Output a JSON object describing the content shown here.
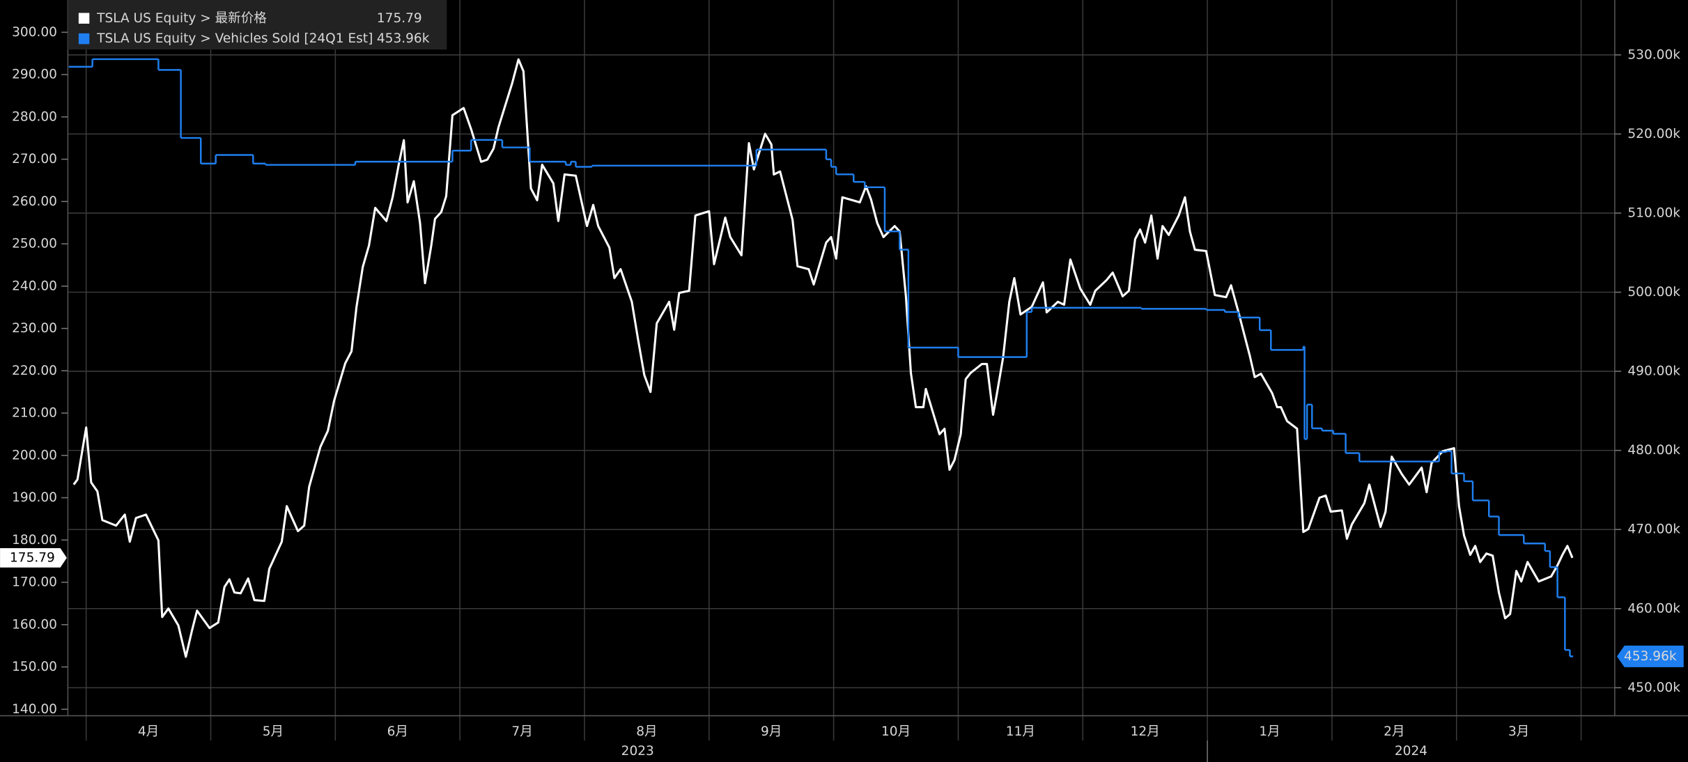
{
  "chart_data": {
    "type": "line",
    "xlim": [
      3.853,
      16.27
    ],
    "xticks": [
      {
        "value": 4,
        "label": "4月"
      },
      {
        "value": 5,
        "label": "5月"
      },
      {
        "value": 6,
        "label": "6月"
      },
      {
        "value": 7,
        "label": "7月"
      },
      {
        "value": 8,
        "label": "8月"
      },
      {
        "value": 9,
        "label": "9月"
      },
      {
        "value": 10,
        "label": "10月"
      },
      {
        "value": 11,
        "label": "11月"
      },
      {
        "value": 12,
        "label": "12月"
      },
      {
        "value": 13,
        "label": "1月"
      },
      {
        "value": 14,
        "label": "2月"
      },
      {
        "value": 15,
        "label": "3月"
      },
      16
    ],
    "year_labels": [
      "2023",
      "2024"
    ],
    "year_break": 13,
    "ylim": [
      138.47,
      307.63
    ],
    "yticks": [
      {
        "value": 140,
        "label": "140.00"
      },
      {
        "value": 150,
        "label": "150.00"
      },
      {
        "value": 160,
        "label": "160.00"
      },
      {
        "value": 170,
        "label": "170.00"
      },
      {
        "value": 180,
        "label": "180.00"
      },
      {
        "value": 190,
        "label": "190.00"
      },
      {
        "value": 200,
        "label": "200.00"
      },
      {
        "value": 210,
        "label": "210.00"
      },
      {
        "value": 220,
        "label": "220.00"
      },
      {
        "value": 230,
        "label": "230.00"
      },
      {
        "value": 240,
        "label": "240.00"
      },
      {
        "value": 250,
        "label": "250.00"
      },
      {
        "value": 260,
        "label": "260.00"
      },
      {
        "value": 270,
        "label": "270.00"
      },
      {
        "value": 280,
        "label": "280.00"
      },
      {
        "value": 290,
        "label": "290.00"
      },
      {
        "value": 300,
        "label": "300.00"
      }
    ],
    "y2lim": [
      446460,
      536940
    ],
    "y2ticks": [
      {
        "value": 450000,
        "label": "450.00k"
      },
      {
        "value": 460000,
        "label": "460.00k"
      },
      {
        "value": 470000,
        "label": "470.00k"
      },
      {
        "value": 480000,
        "label": "480.00k"
      },
      {
        "value": 490000,
        "label": "490.00k"
      },
      {
        "value": 500000,
        "label": "500.00k"
      },
      {
        "value": 510000,
        "label": "510.00k"
      },
      {
        "value": 520000,
        "label": "520.00k"
      },
      {
        "value": 530000,
        "label": "530.00k"
      }
    ],
    "grid": true,
    "legend": "top-left",
    "series": [
      {
        "name": "TSLA US Equity > 最新价格",
        "color": "#ffffff",
        "axis": "y",
        "x": [
          3.9,
          3.93,
          4.0,
          4.04,
          4.09,
          4.13,
          4.24,
          4.31,
          4.35,
          4.4,
          4.48,
          4.58,
          4.61,
          4.66,
          4.74,
          4.8,
          4.85,
          4.89,
          4.99,
          5.06,
          5.11,
          5.15,
          5.19,
          5.24,
          5.3,
          5.35,
          5.43,
          5.47,
          5.57,
          5.61,
          5.7,
          5.75,
          5.79,
          5.88,
          5.94,
          5.99,
          6.08,
          6.13,
          6.17,
          6.22,
          6.27,
          6.32,
          6.41,
          6.46,
          6.51,
          6.55,
          6.58,
          6.63,
          6.68,
          6.72,
          6.77,
          6.8,
          6.85,
          6.89,
          6.94,
          7.03,
          7.09,
          7.17,
          7.22,
          7.27,
          7.31,
          7.42,
          7.47,
          7.51,
          7.57,
          7.62,
          7.66,
          7.75,
          7.79,
          7.84,
          7.93,
          8.02,
          8.07,
          8.11,
          8.2,
          8.24,
          8.29,
          8.38,
          8.43,
          8.48,
          8.53,
          8.58,
          8.68,
          8.72,
          8.76,
          8.84,
          8.89,
          9.0,
          9.04,
          9.13,
          9.17,
          9.26,
          9.32,
          9.36,
          9.45,
          9.5,
          9.52,
          9.57,
          9.67,
          9.71,
          9.8,
          9.84,
          9.94,
          9.98,
          10.02,
          10.07,
          10.21,
          10.26,
          10.3,
          10.35,
          10.4,
          10.49,
          10.53,
          10.58,
          10.62,
          10.66,
          10.72,
          10.74,
          10.85,
          10.89,
          10.93,
          10.97,
          11.02,
          11.06,
          11.1,
          11.19,
          11.23,
          11.28,
          11.31,
          11.36,
          11.41,
          11.45,
          11.5,
          11.59,
          11.68,
          11.71,
          11.8,
          11.85,
          11.9,
          11.98,
          12.06,
          12.1,
          12.19,
          12.24,
          12.32,
          12.37,
          12.42,
          12.46,
          12.5,
          12.55,
          12.6,
          12.64,
          12.69,
          12.77,
          12.82,
          12.86,
          12.9,
          12.99,
          13.06,
          13.15,
          13.19,
          13.25,
          13.34,
          13.38,
          13.43,
          13.52,
          13.56,
          13.59,
          13.64,
          13.72,
          13.77,
          13.81,
          13.9,
          13.95,
          13.99,
          14.08,
          14.12,
          14.16,
          14.26,
          14.3,
          14.39,
          14.43,
          14.48,
          14.56,
          14.62,
          14.72,
          14.76,
          14.8,
          14.89,
          14.98,
          15.02,
          15.06,
          15.11,
          15.15,
          15.19,
          15.24,
          15.29,
          15.34,
          15.39,
          15.43,
          15.48,
          15.52,
          15.57,
          15.66,
          15.76,
          15.81,
          15.85,
          15.89,
          15.93
        ],
        "values": [
          193.1,
          194.3,
          206.6,
          193.6,
          191.5,
          184.7,
          183.4,
          186.0,
          179.6,
          185.2,
          186.0,
          179.9,
          161.8,
          163.8,
          159.8,
          152.4,
          158.7,
          163.3,
          159.2,
          160.5,
          168.9,
          170.7,
          167.6,
          167.4,
          170.9,
          165.8,
          165.6,
          173.2,
          179.6,
          188.0,
          182.1,
          183.4,
          192.6,
          202.0,
          205.8,
          212.9,
          221.8,
          224.6,
          235.1,
          244.5,
          249.6,
          258.5,
          255.4,
          261.0,
          268.9,
          274.5,
          259.8,
          264.8,
          254.9,
          240.7,
          249.6,
          255.9,
          257.5,
          261.3,
          280.4,
          282.1,
          277.1,
          269.4,
          269.9,
          272.5,
          277.6,
          288.0,
          293.6,
          290.8,
          263.1,
          260.3,
          268.7,
          264.3,
          255.4,
          266.4,
          266.1,
          254.2,
          259.2,
          254.2,
          249.1,
          241.9,
          244.0,
          236.3,
          227.4,
          219.0,
          215.0,
          231.2,
          236.3,
          229.7,
          238.4,
          238.9,
          256.7,
          257.7,
          245.2,
          256.2,
          251.6,
          247.3,
          273.8,
          267.6,
          276.0,
          273.5,
          266.4,
          267.1,
          255.7,
          244.7,
          244.0,
          240.4,
          250.3,
          251.6,
          246.5,
          261.0,
          259.8,
          263.6,
          260.5,
          254.9,
          251.6,
          254.2,
          252.9,
          237.6,
          219.5,
          211.4,
          211.4,
          215.7,
          205.0,
          206.3,
          196.6,
          198.9,
          205.0,
          218.0,
          219.5,
          221.6,
          221.6,
          209.6,
          214.5,
          223.1,
          236.3,
          241.9,
          233.3,
          235.1,
          240.9,
          233.8,
          236.3,
          235.6,
          246.3,
          239.4,
          235.6,
          238.9,
          241.4,
          243.2,
          237.6,
          238.9,
          251.1,
          253.4,
          250.3,
          256.7,
          246.5,
          254.2,
          252.1,
          256.7,
          261.0,
          252.9,
          248.6,
          248.3,
          237.9,
          237.4,
          240.2,
          233.8,
          223.6,
          218.5,
          219.3,
          214.7,
          211.4,
          211.4,
          208.1,
          206.3,
          181.9,
          182.6,
          190.0,
          190.5,
          186.7,
          187.0,
          180.3,
          183.7,
          188.7,
          193.1,
          183.1,
          186.7,
          199.7,
          195.6,
          193.1,
          197.1,
          191.3,
          198.2,
          201.0,
          201.7,
          188.0,
          181.1,
          176.5,
          178.6,
          174.8,
          176.8,
          176.3,
          167.6,
          161.5,
          162.5,
          172.7,
          170.2,
          174.8,
          170.2,
          171.4,
          174.0,
          176.5,
          178.6,
          175.79
        ]
      },
      {
        "name": "TSLA US Equity > Vehicles Sold [24Q1 Est]",
        "color": "#1f7ff0",
        "axis": "y2",
        "step": true,
        "x": [
          3.86,
          4.05,
          4.58,
          4.76,
          4.92,
          5.04,
          5.34,
          5.44,
          6.16,
          6.94,
          7.09,
          7.34,
          7.56,
          7.85,
          7.89,
          7.93,
          8.06,
          9.38,
          9.94,
          9.98,
          10.02,
          10.16,
          10.25,
          10.41,
          10.53,
          10.6,
          11.0,
          11.55,
          11.59,
          12.47,
          12.99,
          13.14,
          13.25,
          13.42,
          13.51,
          13.77,
          13.78,
          13.8,
          13.84,
          13.92,
          14.01,
          14.11,
          14.22,
          14.86,
          14.92,
          14.96,
          15.06,
          15.13,
          15.26,
          15.34,
          15.54,
          15.71,
          15.75,
          15.81,
          15.87,
          15.91
        ],
        "values": [
          528500,
          529460,
          528100,
          519500,
          516260,
          517350,
          516260,
          516100,
          516500,
          517900,
          519250,
          518300,
          516500,
          516100,
          516500,
          515850,
          516000,
          518030,
          516800,
          515850,
          514900,
          513950,
          513270,
          507690,
          505380,
          493000,
          491800,
          497500,
          498030,
          497900,
          497760,
          497500,
          496800,
          495200,
          492700,
          493130,
          481430,
          485790,
          482790,
          482500,
          482100,
          479660,
          478600,
          479800,
          479900,
          477080,
          476100,
          473680,
          471640,
          469300,
          468240,
          467280,
          465240,
          461430,
          454770,
          453960
        ],
        "value_labels": [
          null,
          null,
          null,
          null,
          null,
          null,
          null,
          null,
          null,
          null,
          null,
          null,
          null,
          null,
          null,
          null,
          null,
          null,
          null,
          null,
          null,
          null,
          null,
          null,
          null,
          null,
          null,
          null,
          null,
          null,
          null,
          null,
          null,
          null,
          null,
          null,
          null,
          null,
          null,
          null,
          null,
          null,
          null,
          null,
          null,
          null,
          null,
          null,
          null,
          null,
          null,
          null,
          null,
          null,
          null,
          "453.96k"
        ]
      }
    ]
  }
}
